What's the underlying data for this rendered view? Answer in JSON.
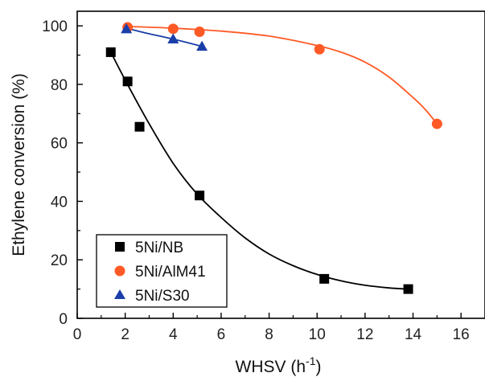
{
  "chart_data": {
    "type": "scatter",
    "xlabel": "WHSV (h",
    "xlabel_sup": "-1",
    "xlabel_close": ")",
    "ylabel": "Ethylene conversion (%)",
    "xlim": [
      0,
      17
    ],
    "ylim": [
      0,
      105
    ],
    "xticks": [
      0,
      2,
      4,
      6,
      8,
      10,
      12,
      14,
      16
    ],
    "yticks": [
      0,
      20,
      40,
      60,
      80,
      100
    ],
    "grid": false,
    "legend_position": "bottom-left",
    "series": [
      {
        "name": "5Ni/NB",
        "marker": "square",
        "color": "#000000",
        "points": [
          [
            1.4,
            91
          ],
          [
            2.1,
            81
          ],
          [
            2.6,
            65.5
          ],
          [
            5.1,
            42
          ],
          [
            10.3,
            13.5
          ],
          [
            13.8,
            10
          ]
        ],
        "fit": [
          [
            1.4,
            91
          ],
          [
            2.0,
            81.5
          ],
          [
            3.0,
            66.5
          ],
          [
            4.0,
            53
          ],
          [
            5.0,
            42.5
          ],
          [
            6.0,
            34.5
          ],
          [
            7.0,
            27.5
          ],
          [
            8.0,
            22
          ],
          [
            9.0,
            18
          ],
          [
            10.0,
            15
          ],
          [
            11.0,
            12.8
          ],
          [
            12.0,
            11.3
          ],
          [
            13.0,
            10.4
          ],
          [
            13.8,
            10
          ]
        ]
      },
      {
        "name": "5Ni/AlM41",
        "marker": "circle",
        "color": "#ff5a26",
        "points": [
          [
            2.1,
            99.5
          ],
          [
            4.0,
            99
          ],
          [
            5.1,
            98
          ],
          [
            10.1,
            92
          ],
          [
            15.0,
            66.5
          ]
        ],
        "fit": [
          [
            2.1,
            99.8
          ],
          [
            4.0,
            99.2
          ],
          [
            6.0,
            98.2
          ],
          [
            8.0,
            96.5
          ],
          [
            10.0,
            93.3
          ],
          [
            11.0,
            91
          ],
          [
            12.0,
            87.6
          ],
          [
            13.0,
            82.5
          ],
          [
            14.0,
            75.5
          ],
          [
            14.5,
            71.5
          ],
          [
            15.0,
            66.5
          ]
        ]
      },
      {
        "name": "5Ni/S30",
        "marker": "triangle",
        "color": "#1a3ea8",
        "points": [
          [
            2.05,
            99
          ],
          [
            4.0,
            95.5
          ],
          [
            5.2,
            93
          ]
        ],
        "fit": [
          [
            2.0,
            99.3
          ],
          [
            3.0,
            97.3
          ],
          [
            4.0,
            95.5
          ],
          [
            5.2,
            93
          ]
        ]
      }
    ]
  }
}
